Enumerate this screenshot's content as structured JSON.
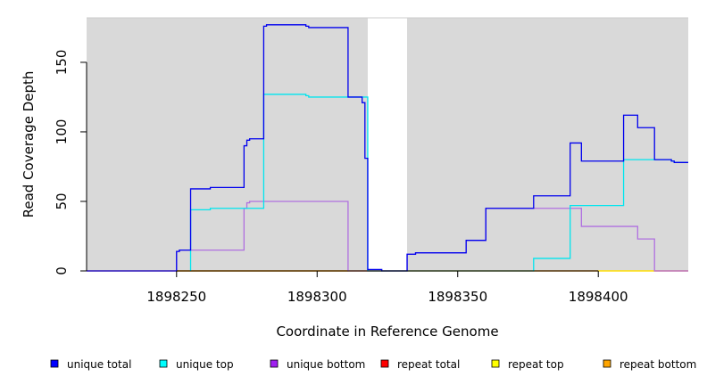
{
  "chart_data": {
    "type": "line",
    "title": "",
    "xlabel": "Coordinate in Reference Genome",
    "ylabel": "Read Coverage Depth",
    "xlim": [
      1898218,
      1898432
    ],
    "ylim": [
      0,
      182
    ],
    "x_ticks": [
      1898250,
      1898300,
      1898350,
      1898400
    ],
    "y_ticks": [
      0,
      50,
      100,
      150
    ],
    "x_tick_labels": [
      "1898250",
      "1898300",
      "1898350",
      "1898400"
    ],
    "y_tick_labels": [
      "0",
      "50",
      "100",
      "150"
    ],
    "gap_region": [
      1898318,
      1898332
    ],
    "background_color": "#d9d9d9",
    "grid": false,
    "legend_position": "bottom",
    "series": [
      {
        "name": "unique total",
        "color": "#0000ee",
        "legend_color": "#0000ff",
        "points": [
          [
            1898218,
            0
          ],
          [
            1898250,
            0
          ],
          [
            1898250,
            14
          ],
          [
            1898251,
            14
          ],
          [
            1898251,
            15
          ],
          [
            1898255,
            15
          ],
          [
            1898255,
            59
          ],
          [
            1898262,
            59
          ],
          [
            1898262,
            60
          ],
          [
            1898274,
            60
          ],
          [
            1898274,
            90
          ],
          [
            1898275,
            90
          ],
          [
            1898275,
            94
          ],
          [
            1898276,
            94
          ],
          [
            1898276,
            95
          ],
          [
            1898281,
            95
          ],
          [
            1898281,
            176
          ],
          [
            1898282,
            176
          ],
          [
            1898282,
            177
          ],
          [
            1898296,
            177
          ],
          [
            1898296,
            176
          ],
          [
            1898297,
            176
          ],
          [
            1898297,
            175
          ],
          [
            1898311,
            175
          ],
          [
            1898311,
            125
          ],
          [
            1898316,
            125
          ],
          [
            1898316,
            121
          ],
          [
            1898317,
            121
          ],
          [
            1898317,
            81
          ],
          [
            1898318,
            81
          ],
          [
            1898318,
            1
          ],
          [
            1898323,
            1
          ],
          [
            1898323,
            0
          ],
          [
            1898332,
            0
          ],
          [
            1898332,
            12
          ],
          [
            1898335,
            12
          ],
          [
            1898335,
            13
          ],
          [
            1898353,
            13
          ],
          [
            1898353,
            22
          ],
          [
            1898360,
            22
          ],
          [
            1898360,
            45
          ],
          [
            1898377,
            45
          ],
          [
            1898377,
            54
          ],
          [
            1898390,
            54
          ],
          [
            1898390,
            92
          ],
          [
            1898394,
            92
          ],
          [
            1898394,
            79
          ],
          [
            1898409,
            79
          ],
          [
            1898409,
            112
          ],
          [
            1898414,
            112
          ],
          [
            1898414,
            103
          ],
          [
            1898420,
            103
          ],
          [
            1898420,
            80
          ],
          [
            1898426,
            80
          ],
          [
            1898426,
            79
          ],
          [
            1898427,
            79
          ],
          [
            1898427,
            78
          ],
          [
            1898432,
            78
          ]
        ]
      },
      {
        "name": "unique top",
        "color": "#00e5ee",
        "legend_color": "#00ffff",
        "points": [
          [
            1898255,
            0
          ],
          [
            1898255,
            44
          ],
          [
            1898262,
            44
          ],
          [
            1898262,
            45
          ],
          [
            1898281,
            45
          ],
          [
            1898281,
            127
          ],
          [
            1898296,
            127
          ],
          [
            1898296,
            126
          ],
          [
            1898297,
            126
          ],
          [
            1898297,
            125
          ],
          [
            1898318,
            125
          ],
          [
            1898318,
            0
          ],
          [
            1898377,
            0
          ],
          [
            1898377,
            9
          ],
          [
            1898390,
            9
          ],
          [
            1898390,
            47
          ],
          [
            1898409,
            47
          ],
          [
            1898409,
            80
          ],
          [
            1898426,
            80
          ],
          [
            1898426,
            79
          ],
          [
            1898427,
            79
          ],
          [
            1898427,
            78
          ],
          [
            1898432,
            78
          ]
        ]
      },
      {
        "name": "unique bottom",
        "color": "#b070e0",
        "legend_color": "#a020f0",
        "points": [
          [
            1898250,
            0
          ],
          [
            1898250,
            14
          ],
          [
            1898251,
            14
          ],
          [
            1898251,
            15
          ],
          [
            1898274,
            15
          ],
          [
            1898274,
            45
          ],
          [
            1898275,
            45
          ],
          [
            1898275,
            49
          ],
          [
            1898276,
            49
          ],
          [
            1898276,
            50
          ],
          [
            1898311,
            50
          ],
          [
            1898311,
            0
          ],
          [
            1898332,
            0
          ],
          [
            1898332,
            12
          ],
          [
            1898335,
            12
          ],
          [
            1898335,
            13
          ],
          [
            1898353,
            13
          ],
          [
            1898353,
            22
          ],
          [
            1898360,
            22
          ],
          [
            1898360,
            45
          ],
          [
            1898394,
            45
          ],
          [
            1898394,
            32
          ],
          [
            1898414,
            32
          ],
          [
            1898414,
            23
          ],
          [
            1898420,
            23
          ],
          [
            1898420,
            0
          ],
          [
            1898432,
            0
          ]
        ]
      },
      {
        "name": "repeat total",
        "color": "#ff0000",
        "legend_color": "#ff0000",
        "points": [
          [
            1898218,
            0
          ],
          [
            1898432,
            0
          ]
        ]
      },
      {
        "name": "repeat top",
        "color": "#ffff00",
        "legend_color": "#ffff00",
        "points": [
          [
            1898218,
            0
          ],
          [
            1898432,
            0
          ]
        ]
      },
      {
        "name": "repeat bottom",
        "color": "#ffa500",
        "legend_color": "#ffa500",
        "points": [
          [
            1898250,
            0
          ],
          [
            1898311,
            0
          ]
        ]
      }
    ]
  }
}
